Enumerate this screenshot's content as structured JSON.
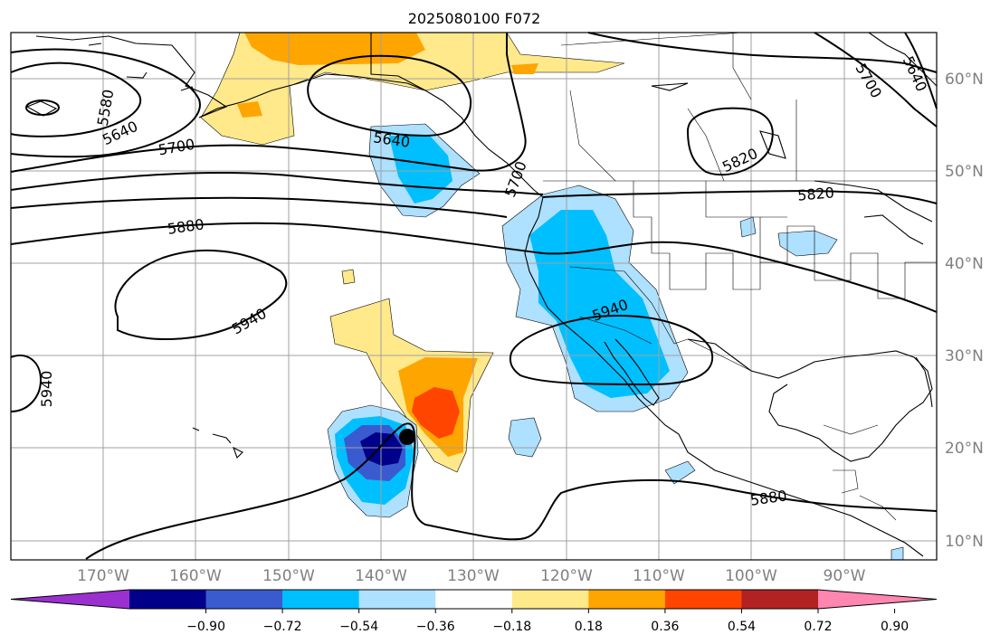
{
  "title": "2025080100 F072",
  "lat_labels": [
    "60°N",
    "50°N",
    "40°N",
    "30°N",
    "20°N",
    "10°N"
  ],
  "lon_labels": [
    "170°W",
    "160°W",
    "150°W",
    "140°W",
    "130°W",
    "120°W",
    "110°W",
    "100°W",
    "90°W"
  ],
  "contour_labels": [
    "5580",
    "5640",
    "5700",
    "5640",
    "5700",
    "5640",
    "5700",
    "5820",
    "5820",
    "5880",
    "5940",
    "5940",
    "5940",
    "5880"
  ],
  "colorbar": {
    "ticks": [
      "−0.90",
      "−0.72",
      "−0.54",
      "−0.36",
      "−0.18",
      "0.18",
      "0.36",
      "0.54",
      "0.72",
      "0.90"
    ],
    "colors": [
      "#9b30d0",
      "#00008b",
      "#3a5bd0",
      "#00bfff",
      "#aee0ff",
      "#ffffff",
      "#ffe98a",
      "#ffa500",
      "#ff4500",
      "#b22222",
      "#ff86b0"
    ]
  },
  "storm_marker": {
    "lon": -137,
    "lat": 21
  }
}
